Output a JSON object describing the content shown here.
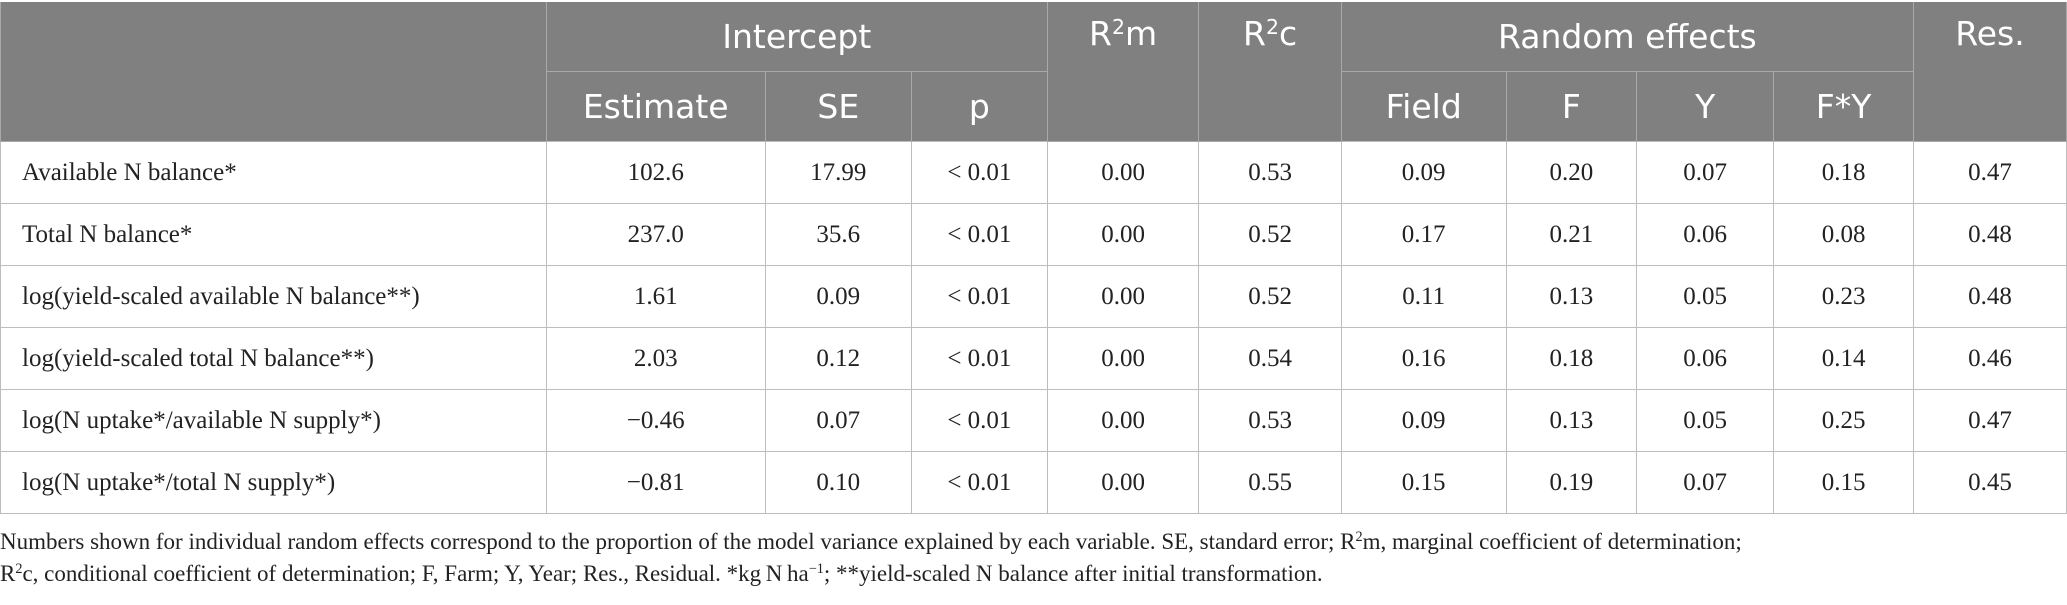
{
  "table": {
    "headers": {
      "intercept": "Intercept",
      "estimate": "Estimate",
      "se": "SE",
      "p": "p",
      "r2m_base": "R",
      "r2m_sup": "2",
      "r2m_tail": "m",
      "r2c_base": "R",
      "r2c_sup": "2",
      "r2c_tail": "c",
      "random_effects": "Random effects",
      "field": "Field",
      "f": "F",
      "y": "Y",
      "fy": "F*Y",
      "res": "Res."
    },
    "rows": [
      {
        "label": "Available N balance*",
        "estimate": "102.6",
        "se": "17.99",
        "p": "< 0.01",
        "r2m": "0.00",
        "r2c": "0.53",
        "field": "0.09",
        "f": "0.20",
        "y": "0.07",
        "fy": "0.18",
        "res": "0.47"
      },
      {
        "label": "Total N balance*",
        "estimate": "237.0",
        "se": "35.6",
        "p": "< 0.01",
        "r2m": "0.00",
        "r2c": "0.52",
        "field": "0.17",
        "f": "0.21",
        "y": "0.06",
        "fy": "0.08",
        "res": "0.48"
      },
      {
        "label": "log(yield-scaled available N balance**)",
        "estimate": "1.61",
        "se": "0.09",
        "p": "< 0.01",
        "r2m": "0.00",
        "r2c": "0.52",
        "field": "0.11",
        "f": "0.13",
        "y": "0.05",
        "fy": "0.23",
        "res": "0.48"
      },
      {
        "label": "log(yield-scaled total N balance**)",
        "estimate": "2.03",
        "se": "0.12",
        "p": "< 0.01",
        "r2m": "0.00",
        "r2c": "0.54",
        "field": "0.16",
        "f": "0.18",
        "y": "0.06",
        "fy": "0.14",
        "res": "0.46"
      },
      {
        "label": "log(N uptake*/available N supply*)",
        "estimate": "−0.46",
        "se": "0.07",
        "p": "< 0.01",
        "r2m": "0.00",
        "r2c": "0.53",
        "field": "0.09",
        "f": "0.13",
        "y": "0.05",
        "fy": "0.25",
        "res": "0.47"
      },
      {
        "label": "log(N uptake*/total N supply*)",
        "estimate": "−0.81",
        "se": "0.10",
        "p": "< 0.01",
        "r2m": "0.00",
        "r2c": "0.55",
        "field": "0.15",
        "f": "0.19",
        "y": "0.07",
        "fy": "0.15",
        "res": "0.45"
      }
    ]
  },
  "footnote": {
    "line1_a": "Numbers shown for individual random effects correspond to the proportion of the model variance explained by each variable. SE, standard error; R",
    "line1_sup": "2",
    "line1_b": "m, marginal coefficient of determination;",
    "line2_a": "R",
    "line2_sup1": "2",
    "line2_b": "c, conditional coefficient of determination; F, Farm; Y, Year; Res., Residual. *kg N ha",
    "line2_sup2": "−1",
    "line2_c": "; **yield-scaled N balance after initial transformation."
  }
}
